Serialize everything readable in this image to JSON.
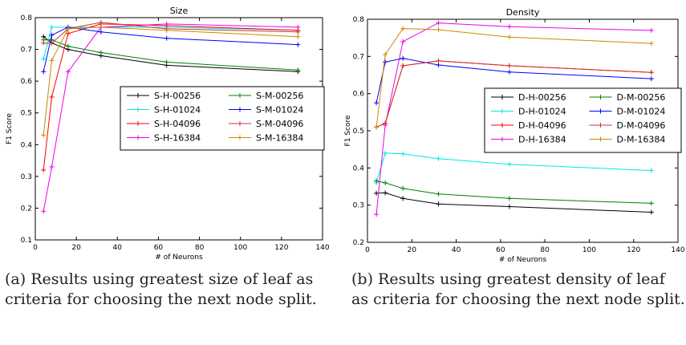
{
  "chart_data": [
    {
      "type": "line",
      "title": "Size",
      "xlabel": "# of Neurons",
      "ylabel": "F1 Score",
      "xlim": [
        0,
        140
      ],
      "ylim": [
        0.1,
        0.8
      ],
      "xticks": [
        "0",
        "20",
        "40",
        "60",
        "80",
        "100",
        "120",
        "140"
      ],
      "yticks": [
        "0.1",
        "0.2",
        "0.3",
        "0.4",
        "0.5",
        "0.6",
        "0.7",
        "0.8"
      ],
      "x": [
        4,
        8,
        16,
        32,
        64,
        128
      ],
      "legend_position": "center-right",
      "legend_columns": 2,
      "grid": false,
      "series": [
        {
          "name": "S-H-00256",
          "color": "#000000",
          "values": [
            0.74,
            0.72,
            0.7,
            0.68,
            0.65,
            0.63
          ]
        },
        {
          "name": "S-H-01024",
          "color": "#00e5e5",
          "values": [
            0.67,
            0.77,
            0.77,
            0.77,
            0.77,
            0.76
          ]
        },
        {
          "name": "S-H-04096",
          "color": "#ff0000",
          "values": [
            0.32,
            0.55,
            0.75,
            0.78,
            0.775,
            0.76
          ]
        },
        {
          "name": "S-H-16384",
          "color": "#ee00ee",
          "values": [
            0.19,
            0.33,
            0.63,
            0.77,
            0.78,
            0.77
          ]
        },
        {
          "name": "S-M-00256",
          "color": "#008000",
          "values": [
            0.73,
            0.73,
            0.71,
            0.69,
            0.66,
            0.635
          ]
        },
        {
          "name": "S-M-01024",
          "color": "#0000ff",
          "values": [
            0.63,
            0.745,
            0.77,
            0.755,
            0.735,
            0.715
          ]
        },
        {
          "name": "S-M-04096",
          "color": "#cc3333",
          "values": [
            0.72,
            0.72,
            0.765,
            0.785,
            0.765,
            0.755
          ]
        },
        {
          "name": "S-M-16384",
          "color": "#cc8800",
          "values": [
            0.43,
            0.665,
            0.765,
            0.77,
            0.76,
            0.74
          ]
        }
      ]
    },
    {
      "type": "line",
      "title": "Density",
      "xlabel": "# of Neurons",
      "ylabel": "F1 Score",
      "xlim": [
        0,
        140
      ],
      "ylim": [
        0.2,
        0.8
      ],
      "xticks": [
        "0",
        "20",
        "40",
        "60",
        "80",
        "100",
        "120",
        "140"
      ],
      "yticks": [
        "0.2",
        "0.3",
        "0.4",
        "0.5",
        "0.6",
        "0.7",
        "0.8"
      ],
      "x": [
        4,
        8,
        16,
        32,
        64,
        128
      ],
      "legend_position": "center-right",
      "legend_columns": 2,
      "grid": false,
      "series": [
        {
          "name": "D-H-00256",
          "color": "#000000",
          "values": [
            0.332,
            0.333,
            0.318,
            0.303,
            0.296,
            0.281
          ]
        },
        {
          "name": "D-H-01024",
          "color": "#00e5e5",
          "values": [
            0.36,
            0.44,
            0.438,
            0.425,
            0.41,
            0.393
          ]
        },
        {
          "name": "D-H-04096",
          "color": "#ff0000",
          "values": [
            0.51,
            0.52,
            0.675,
            0.688,
            0.675,
            0.657
          ]
        },
        {
          "name": "D-H-16384",
          "color": "#ee00ee",
          "values": [
            0.275,
            0.515,
            0.74,
            0.79,
            0.78,
            0.77
          ]
        },
        {
          "name": "D-M-00256",
          "color": "#008000",
          "values": [
            0.365,
            0.36,
            0.345,
            0.33,
            0.318,
            0.305
          ]
        },
        {
          "name": "D-M-01024",
          "color": "#0000ff",
          "values": [
            0.575,
            0.685,
            0.695,
            0.677,
            0.658,
            0.64
          ]
        },
        {
          "name": "D-M-04096",
          "color": "#cc3333",
          "values": [
            0.51,
            0.52,
            0.675,
            0.688,
            0.675,
            0.657
          ]
        },
        {
          "name": "D-M-16384",
          "color": "#cc8800",
          "values": [
            0.51,
            0.705,
            0.775,
            0.772,
            0.752,
            0.735
          ]
        }
      ]
    }
  ],
  "captions": {
    "a": "(a) Results using greatest size of leaf as criteria for choosing the next node split.",
    "b": "(b) Results using greatest density of leaf as criteria for choosing the next node split."
  }
}
